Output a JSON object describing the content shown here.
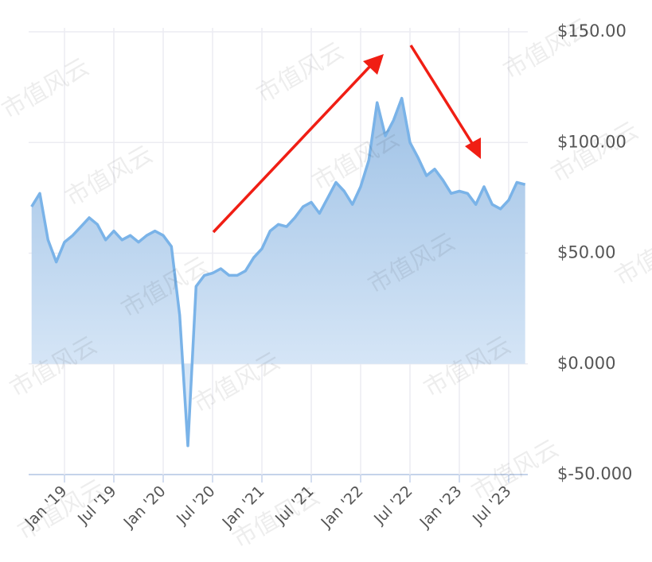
{
  "chart_data": {
    "type": "area",
    "watermark": "市值风云",
    "x": [
      "2018-09",
      "2018-10",
      "2018-11",
      "2018-12",
      "2019-01",
      "2019-02",
      "2019-03",
      "2019-04",
      "2019-05",
      "2019-06",
      "2019-07",
      "2019-08",
      "2019-09",
      "2019-10",
      "2019-11",
      "2019-12",
      "2020-01",
      "2020-02",
      "2020-03",
      "2020-04",
      "2020-05",
      "2020-06",
      "2020-07",
      "2020-08",
      "2020-09",
      "2020-10",
      "2020-11",
      "2020-12",
      "2021-01",
      "2021-02",
      "2021-03",
      "2021-04",
      "2021-05",
      "2021-06",
      "2021-07",
      "2021-08",
      "2021-09",
      "2021-10",
      "2021-11",
      "2021-12",
      "2022-01",
      "2022-02",
      "2022-03",
      "2022-04",
      "2022-05",
      "2022-06",
      "2022-07",
      "2022-08",
      "2022-09",
      "2022-10",
      "2022-11",
      "2022-12",
      "2023-01",
      "2023-02",
      "2023-03",
      "2023-04",
      "2023-05",
      "2023-06",
      "2023-07",
      "2023-08",
      "2023-09"
    ],
    "values": [
      71,
      77,
      56,
      46,
      55,
      58,
      62,
      66,
      63,
      56,
      60,
      56,
      58,
      55,
      58,
      60,
      58,
      53,
      22,
      -37,
      35,
      40,
      41,
      43,
      40,
      40,
      42,
      48,
      52,
      60,
      63,
      62,
      66,
      71,
      73,
      68,
      75,
      82,
      78,
      72,
      80,
      92,
      118,
      103,
      110,
      120,
      100,
      93,
      85,
      88,
      83,
      77,
      78,
      77,
      72,
      80,
      72,
      70,
      74,
      82,
      81
    ],
    "color": "#7ab3e8",
    "ylim": [
      -50,
      150
    ],
    "yticks": [
      {
        "value": -50,
        "label": "$-50.000"
      },
      {
        "value": 0,
        "label": "$0.000"
      },
      {
        "value": 50,
        "label": "$50.00"
      },
      {
        "value": 100,
        "label": "$100.00"
      },
      {
        "value": 150,
        "label": "$150.00"
      }
    ],
    "xticks": [
      {
        "value": "2019-01",
        "label": "Jan '19"
      },
      {
        "value": "2019-07",
        "label": "Jul '19"
      },
      {
        "value": "2020-01",
        "label": "Jan '20"
      },
      {
        "value": "2020-07",
        "label": "Jul '20"
      },
      {
        "value": "2021-01",
        "label": "Jan '21"
      },
      {
        "value": "2021-07",
        "label": "Jul '21"
      },
      {
        "value": "2022-01",
        "label": "Jan '22"
      },
      {
        "value": "2022-07",
        "label": "Jul '22"
      },
      {
        "value": "2023-01",
        "label": "Jan '23"
      },
      {
        "value": "2023-07",
        "label": "Jul '23"
      }
    ],
    "grid": true
  }
}
